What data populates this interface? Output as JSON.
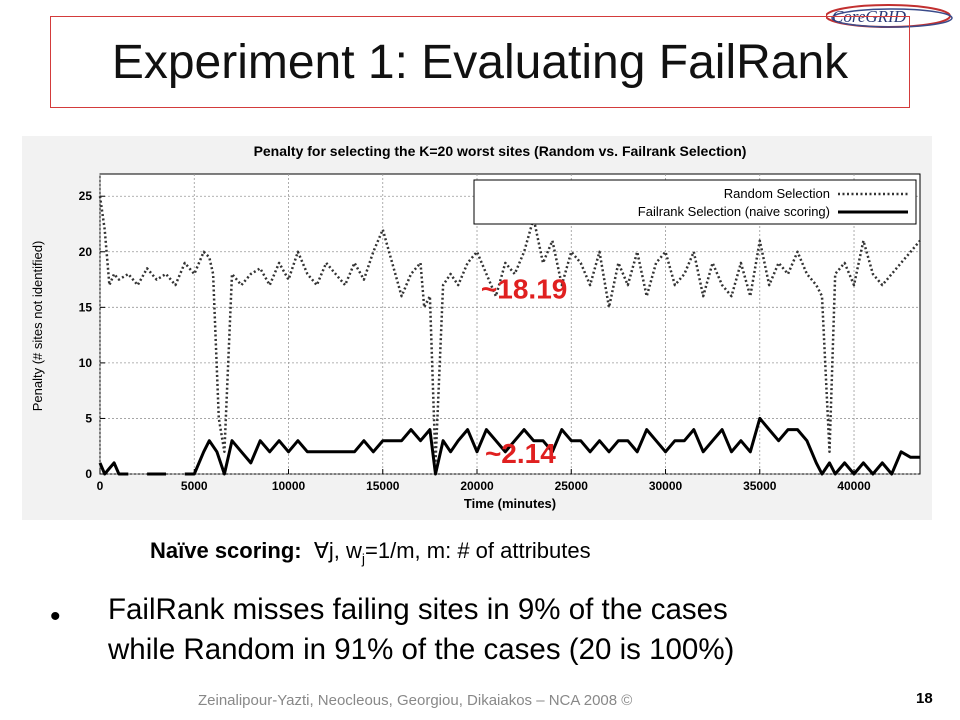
{
  "slide": {
    "title": "Experiment 1: Evaluating FailRank",
    "logo_text": "CoreGRID",
    "page_number": "18",
    "footer": "Zeinalipour-Yazti, Neocleous, Georgiou, Dikaiakos – NCA 2008 ©",
    "naive_label": "Naïve scoring:",
    "naive_forall": "∀",
    "naive_j": "j, w",
    "naive_sub": "j",
    "naive_rest": "=1/m, m: # of attributes",
    "bullet_line1": "FailRank misses failing sites in 9% of the cases",
    "bullet_line2": "while Random in 91% of the cases (20 is 100%)"
  },
  "chart_data": {
    "type": "line",
    "title": "Penalty for selecting the K=20 worst sites (Random vs. Failrank Selection)",
    "xlabel": "Time (minutes)",
    "ylabel": "Penalty (# sites not identified)",
    "xlim": [
      0,
      43500
    ],
    "ylim": [
      0,
      27
    ],
    "xticks": [
      0,
      5000,
      10000,
      15000,
      20000,
      25000,
      30000,
      35000,
      40000
    ],
    "yticks": [
      0,
      5,
      10,
      15,
      20,
      25
    ],
    "grid": true,
    "legend_position": "top-right",
    "annotations": [
      {
        "text": "~18.19",
        "x": 22500,
        "y": 15.8,
        "color": "#e02020"
      },
      {
        "text": "~2.14",
        "x": 22300,
        "y": 1.0,
        "color": "#e02020"
      }
    ],
    "series": [
      {
        "name": "Random Selection",
        "style": "dotted",
        "color": "#333333",
        "x": [
          0,
          250,
          500,
          750,
          1000,
          1500,
          2000,
          2500,
          3000,
          3500,
          4000,
          4500,
          5000,
          5500,
          5800,
          6000,
          6300,
          6600,
          7000,
          7500,
          8000,
          8500,
          9000,
          9500,
          10000,
          10500,
          11000,
          11500,
          12000,
          12500,
          13000,
          13500,
          14000,
          14500,
          15000,
          15500,
          16000,
          16500,
          17000,
          17200,
          17500,
          17800,
          18200,
          18600,
          19000,
          19500,
          20000,
          20500,
          21000,
          21500,
          22000,
          22500,
          23000,
          23500,
          24000,
          24500,
          25000,
          25500,
          26000,
          26500,
          27000,
          27500,
          28000,
          28500,
          29000,
          29500,
          30000,
          30500,
          31000,
          31500,
          32000,
          32500,
          33000,
          33500,
          34000,
          34500,
          35000,
          35500,
          36000,
          36500,
          37000,
          37500,
          38000,
          38300,
          38700,
          39000,
          39500,
          40000,
          40500,
          41000,
          41500,
          42000,
          42500,
          43000,
          43500
        ],
        "y": [
          25,
          22,
          17,
          18,
          17.5,
          18,
          17,
          18.5,
          17.5,
          18,
          17,
          19,
          18,
          20,
          19.5,
          18,
          5,
          2,
          18,
          17,
          18,
          18.5,
          17,
          19,
          17.5,
          20,
          18,
          17,
          19,
          18,
          17,
          19,
          17.5,
          20,
          22,
          19,
          16,
          18,
          19,
          15,
          16,
          1,
          17,
          18,
          17,
          19,
          20,
          18,
          16,
          19,
          18,
          20,
          23,
          19,
          21,
          17,
          20,
          19,
          17,
          20,
          15,
          19,
          17,
          20,
          16,
          19,
          20,
          17,
          18,
          20,
          16,
          19,
          17,
          16,
          19,
          16,
          21,
          17,
          19,
          18,
          20,
          18,
          17,
          16,
          2,
          18,
          19,
          17,
          21,
          18,
          17,
          18,
          19,
          20,
          21
        ]
      },
      {
        "name": "Failrank Selection (naive scoring)",
        "style": "solid",
        "color": "#000000",
        "x": [
          0,
          250,
          500,
          750,
          1000,
          1500,
          2000,
          2500,
          3500,
          4000,
          4500,
          5000,
          5500,
          5800,
          6200,
          6600,
          7000,
          7500,
          8000,
          8500,
          9000,
          9500,
          10000,
          10500,
          11000,
          11500,
          12000,
          12500,
          13000,
          13500,
          14000,
          14500,
          15000,
          15500,
          16000,
          16500,
          17000,
          17500,
          17800,
          18200,
          18600,
          19000,
          19500,
          20000,
          20500,
          21000,
          21500,
          22000,
          22500,
          23000,
          23500,
          24000,
          24500,
          25000,
          25500,
          26000,
          26500,
          27000,
          27500,
          28000,
          28500,
          29000,
          29500,
          30000,
          30500,
          31000,
          31500,
          32000,
          32500,
          33000,
          33500,
          34000,
          34500,
          35000,
          35500,
          36000,
          36500,
          37000,
          37500,
          38000,
          38300,
          38700,
          39000,
          39500,
          40000,
          40500,
          41000,
          41500,
          42000,
          42500,
          43000,
          43500
        ],
        "y": [
          1,
          0,
          0.5,
          1,
          0,
          0,
          null,
          0,
          0,
          null,
          0,
          0,
          2,
          3,
          2,
          0,
          3,
          2,
          1,
          3,
          2,
          3,
          2,
          3,
          2,
          2,
          2,
          2,
          2,
          2,
          3,
          2,
          3,
          3,
          3,
          4,
          3,
          4,
          0,
          3,
          2,
          3,
          4,
          2,
          4,
          3,
          2,
          3,
          4,
          3,
          3,
          2,
          4,
          3,
          3,
          2,
          3,
          2,
          3,
          3,
          2,
          4,
          3,
          2,
          3,
          3,
          4,
          2,
          3,
          4,
          2,
          3,
          2,
          5,
          4,
          3,
          4,
          4,
          3,
          1,
          0,
          1,
          0,
          1,
          0,
          1,
          0,
          1,
          0,
          2,
          1.5,
          1.5
        ]
      }
    ]
  }
}
